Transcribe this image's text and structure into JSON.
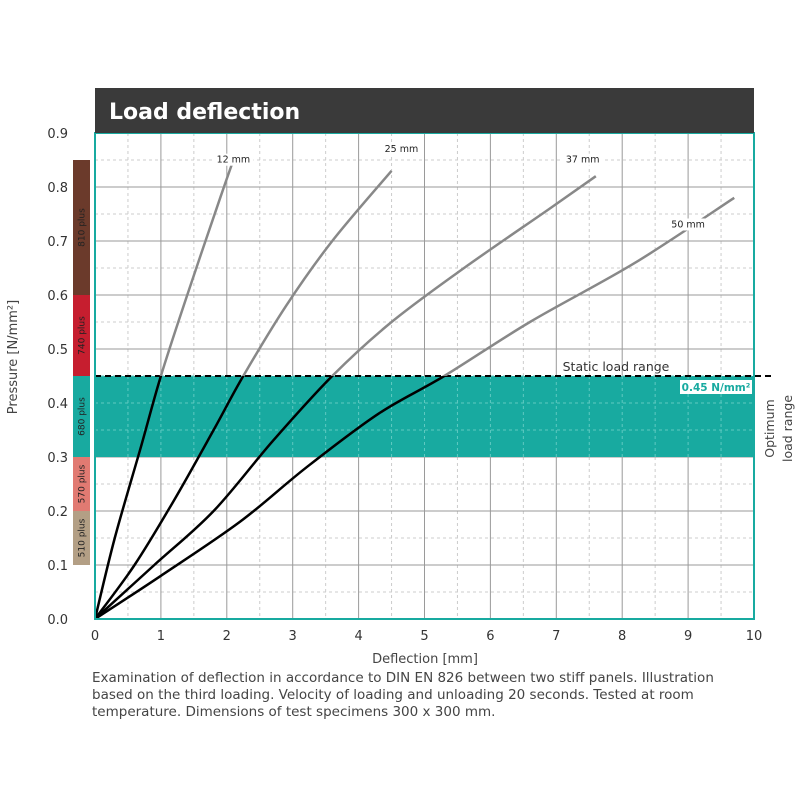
{
  "chart_data": {
    "type": "line",
    "title": "Load deflection",
    "xlabel": "Deflection [mm]",
    "ylabel": "Pressure [N/mm²]",
    "xlim": [
      0,
      10
    ],
    "ylim": [
      0,
      0.9
    ],
    "xticks": [
      0,
      1,
      2,
      3,
      4,
      5,
      6,
      7,
      8,
      9,
      10
    ],
    "yticks": [
      "0.0",
      "0.1",
      "0.2",
      "0.3",
      "0.4",
      "0.5",
      "0.6",
      "0.7",
      "0.8",
      "0.9"
    ],
    "grid": true,
    "series": [
      {
        "name": "12 mm",
        "x": [
          0,
          0.3,
          0.7,
          1.0,
          1.4,
          1.9,
          2.1
        ],
        "y": [
          0,
          0.15,
          0.32,
          0.45,
          0.6,
          0.78,
          0.85
        ]
      },
      {
        "name": "25 mm",
        "x": [
          0,
          0.6,
          1.2,
          1.8,
          2.25,
          2.9,
          3.6,
          4.5
        ],
        "y": [
          0,
          0.1,
          0.22,
          0.35,
          0.45,
          0.58,
          0.7,
          0.83
        ]
      },
      {
        "name": "37 mm",
        "x": [
          0,
          0.9,
          1.8,
          2.7,
          3.6,
          4.5,
          5.6,
          6.9,
          7.6
        ],
        "y": [
          0,
          0.1,
          0.2,
          0.33,
          0.45,
          0.55,
          0.65,
          0.76,
          0.82
        ]
      },
      {
        "name": "50 mm",
        "x": [
          0,
          1.0,
          2.2,
          3.2,
          4.3,
          5.3,
          6.6,
          8.2,
          9.7
        ],
        "y": [
          0,
          0.08,
          0.18,
          0.28,
          0.38,
          0.45,
          0.55,
          0.66,
          0.78
        ]
      }
    ],
    "series_colors": {
      "loaded": "#000000",
      "unloaded": "#888888"
    },
    "reference_line": {
      "value": 0.45,
      "label": "Static load range"
    },
    "optimum_range": {
      "from": 0.3,
      "to": 0.45,
      "label": "Optimum load range",
      "value_label": "0.45 N/mm²",
      "color": "#18aaa0"
    },
    "material_bands": [
      {
        "label": "510 plus",
        "from": 0.1,
        "to": 0.2,
        "color": "#b39f85"
      },
      {
        "label": "570 plus",
        "from": 0.2,
        "to": 0.3,
        "color": "#e17a72"
      },
      {
        "label": "680 plus",
        "from": 0.3,
        "to": 0.45,
        "color": "#18aaa0"
      },
      {
        "label": "740 plus",
        "from": 0.45,
        "to": 0.6,
        "color": "#c61e2f"
      },
      {
        "label": "810 plus",
        "from": 0.6,
        "to": 0.85,
        "color": "#6b3a2b"
      }
    ],
    "header_color": "#3a3a3a",
    "frame_color": "#18aaa0"
  },
  "caption": "Examination of deflection in accordance to DIN EN 826 between two stiff panels. Illustration based on the third loading. Velocity of loading and unloading 20 seconds. Tested at room temperature. Dimensions of test specimens 300 x 300 mm."
}
